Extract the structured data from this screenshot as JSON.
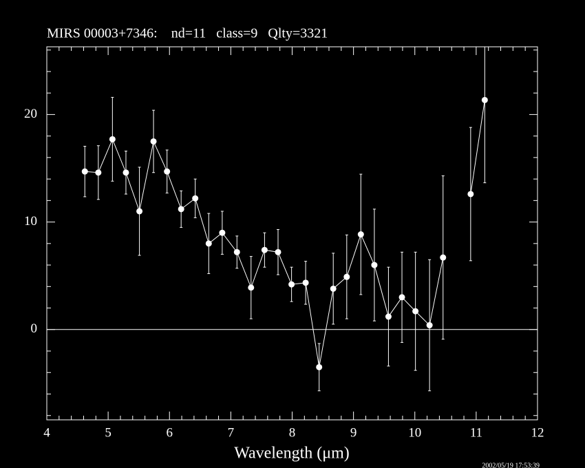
{
  "chart_data": {
    "type": "errorbar",
    "title": "MIRS 00003+7346:    nd=11   class=9   Qlty=3321",
    "xlabel": "Wavelength (μm)",
    "timestamp": "2002/05/19 17:53:39",
    "x": [
      4.62,
      4.84,
      5.07,
      5.29,
      5.51,
      5.74,
      5.96,
      6.19,
      6.42,
      6.64,
      6.86,
      7.1,
      7.33,
      7.55,
      7.77,
      7.99,
      8.22,
      8.44,
      8.67,
      8.89,
      9.12,
      9.34,
      9.57,
      9.79,
      10.01,
      10.24,
      10.46,
      10.69,
      10.91,
      11.14
    ],
    "series": [
      {
        "color": "#ffffff",
        "values": [
          14.7,
          14.6,
          17.7,
          14.6,
          11.0,
          17.5,
          14.7,
          11.2,
          12.2,
          8.0,
          9.0,
          7.2,
          3.9,
          7.4,
          7.2,
          4.2,
          4.35,
          -3.5,
          3.8,
          4.9,
          8.85,
          6.0,
          1.2,
          3.0,
          1.7,
          0.4,
          6.7,
          null,
          12.6,
          21.35
        ],
        "errors": [
          2.35,
          2.5,
          3.9,
          2.0,
          4.1,
          2.9,
          2.0,
          1.7,
          1.8,
          2.8,
          2.0,
          1.5,
          2.9,
          1.6,
          2.1,
          1.6,
          2.0,
          2.2,
          3.3,
          3.9,
          5.6,
          5.2,
          4.6,
          4.2,
          5.5,
          6.1,
          7.6,
          null,
          6.2,
          7.7
        ]
      }
    ],
    "xlim": [
      4,
      12
    ],
    "xticks": [
      4,
      5,
      6,
      7,
      8,
      9,
      10,
      11,
      12
    ],
    "ylim": [
      -8.4,
      26.3
    ],
    "yticks": [
      0,
      10,
      20
    ],
    "reference_line": 0,
    "minor_ticks": true
  }
}
